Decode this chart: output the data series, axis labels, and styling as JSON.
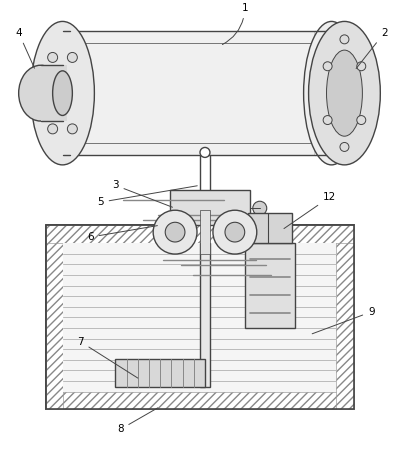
{
  "background_color": "#ffffff",
  "line_color": "#444444",
  "gray_fill": "#e8e8e8",
  "gray_dark": "#cccccc",
  "white": "#ffffff",
  "hatch_gray": "#aaaaaa"
}
